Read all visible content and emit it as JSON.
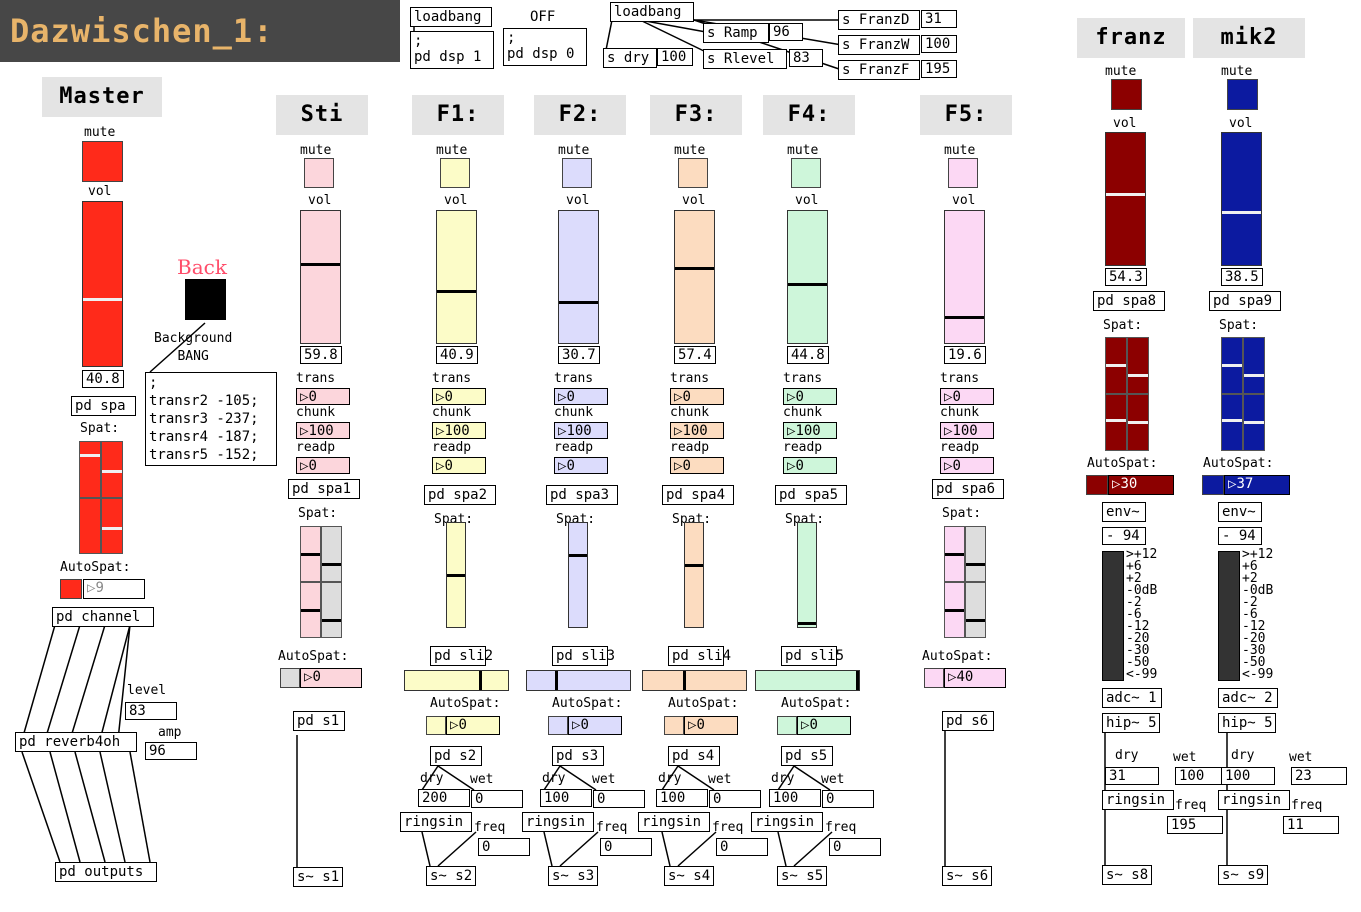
{
  "title": "Dazwischen_1:",
  "top_objects": {
    "loadbang_1": "loadbang",
    "msg_dsp1": ";\npd dsp 1",
    "off_label": "OFF",
    "msg_dsp0": ";\npd dsp 0",
    "loadbang_2": "loadbang",
    "s_ramp": "s Ramp",
    "ramp_val": "96",
    "s_dry": "s dry",
    "dry_val": "100",
    "s_rlevel": "s Rlevel",
    "rlevel_val": "83",
    "s_franzd": "s FranzD",
    "franzd_val": "31",
    "s_franzw": "s FranzW",
    "franzw_val": "100",
    "s_franzf": "s FranzF",
    "franzf_val": "195"
  },
  "master": {
    "header": "Master",
    "mute_label": "mute",
    "vol_label": "vol",
    "vol_value": "40.8",
    "pd_spa": "pd spa",
    "spat_label": "Spat:",
    "autospat_label": "AutoSpat:",
    "autospat_value": "9",
    "pd_channel": "pd channel",
    "level_label": "level",
    "level_value": "83",
    "amp_label": "amp",
    "amp_value": "96",
    "pd_reverb": "pd reverb4oh",
    "pd_outputs": "pd outputs",
    "color": "#ff2a1a"
  },
  "background": {
    "back_label": "Back",
    "bang_label": "Background\nBANG",
    "transr_msg": ";\ntransr2 -105;\ntransr3 -237;\ntransr4 -187;\ntransr5 -152;"
  },
  "channels": [
    {
      "header": "Sti",
      "color": "#fcd6dc",
      "vol_value": "59.8",
      "trans": "0",
      "chunk": "100",
      "readp": "0",
      "pd_spa": "pd spa1",
      "autospat_value": "0",
      "pd_sli": "",
      "pd_s": "pd s1",
      "send": "s~ s1",
      "dry_value": "",
      "wet_value": "",
      "freq_value": "",
      "ringsin": "",
      "dry_label": "",
      "wet_label": "",
      "freq_label": ""
    },
    {
      "header": "F1:",
      "color": "#fcfcc8",
      "vol_value": "40.9",
      "trans": "0",
      "chunk": "100",
      "readp": "0",
      "pd_spa": "pd spa2",
      "autospat_value": "0",
      "pd_sli": "pd sli2",
      "pd_s": "pd s2",
      "send": "s~ s2",
      "dry_value": "200",
      "wet_value": "0",
      "freq_value": "0",
      "ringsin": "ringsin",
      "dry_label": "dry",
      "wet_label": "wet",
      "freq_label": "freq"
    },
    {
      "header": "F2:",
      "color": "#dcdcfc",
      "vol_value": "30.7",
      "trans": "0",
      "chunk": "100",
      "readp": "0",
      "pd_spa": "pd spa3",
      "autospat_value": "0",
      "pd_sli": "pd sli3",
      "pd_s": "pd s3",
      "send": "s~ s3",
      "dry_value": "100",
      "wet_value": "0",
      "freq_value": "0",
      "ringsin": "ringsin",
      "dry_label": "dry",
      "wet_label": "wet",
      "freq_label": "freq"
    },
    {
      "header": "F3:",
      "color": "#fcdcc0",
      "vol_value": "57.4",
      "trans": "0",
      "chunk": "100",
      "readp": "0",
      "pd_spa": "pd spa4",
      "autospat_value": "0",
      "pd_sli": "pd sli4",
      "pd_s": "pd s4",
      "send": "s~ s4",
      "dry_value": "100",
      "wet_value": "0",
      "freq_value": "0",
      "ringsin": "ringsin",
      "dry_label": "dry",
      "wet_label": "wet",
      "freq_label": "freq"
    },
    {
      "header": "F4:",
      "color": "#cef6da",
      "vol_value": "44.8",
      "trans": "0",
      "chunk": "100",
      "readp": "0",
      "pd_spa": "pd spa5",
      "autospat_value": "0",
      "pd_sli": "pd sli5",
      "pd_s": "pd s5",
      "send": "s~ s5",
      "dry_value": "100",
      "wet_value": "0",
      "freq_value": "0",
      "ringsin": "ringsin",
      "dry_label": "dry",
      "wet_label": "wet",
      "freq_label": "freq"
    },
    {
      "header": "F5:",
      "color": "#fcd8f4",
      "vol_value": "19.6",
      "trans": "0",
      "chunk": "100",
      "readp": "0",
      "pd_spa": "pd spa6",
      "autospat_value": "40",
      "pd_sli": "",
      "pd_s": "pd s6",
      "send": "s~ s6",
      "dry_value": "",
      "wet_value": "",
      "freq_value": "",
      "ringsin": "",
      "dry_label": "",
      "wet_label": "",
      "freq_label": ""
    }
  ],
  "channel_labels": {
    "mute": "mute",
    "vol": "vol",
    "trans": "trans",
    "chunk": "chunk",
    "readp": "readp",
    "spat": "Spat:",
    "autospat": "AutoSpat:"
  },
  "mics": [
    {
      "header": "franz",
      "color": "#8c0000",
      "vol_value": "54.3",
      "pd_spa": "pd spa8",
      "autospat_value": "30",
      "env": "env~",
      "env_val": "- 94",
      "adc": "adc~ 1",
      "hip": "hip~ 5",
      "dry_value": "31",
      "wet_value": "100",
      "ringsin": "ringsin",
      "freq_value": "195",
      "send": "s~ s8",
      "dry_label": "dry",
      "wet_label": "wet",
      "freq_label": "freq"
    },
    {
      "header": "mik2",
      "color": "#0c1aa0",
      "vol_value": "38.5",
      "pd_spa": "pd spa9",
      "autospat_value": "37",
      "env": "env~",
      "env_val": "- 94",
      "adc": "adc~ 2",
      "hip": "hip~ 5",
      "dry_value": "100",
      "wet_value": "23",
      "ringsin": "ringsin",
      "freq_value": "11",
      "send": "s~ s9",
      "dry_label": "dry",
      "wet_label": "wet",
      "freq_label": "freq"
    }
  ],
  "vu_scale": [
    ">+12",
    "+6",
    "+2",
    "-0dB",
    "-2",
    "-6",
    "-12",
    "-20",
    "-30",
    "-50",
    "<-99"
  ]
}
